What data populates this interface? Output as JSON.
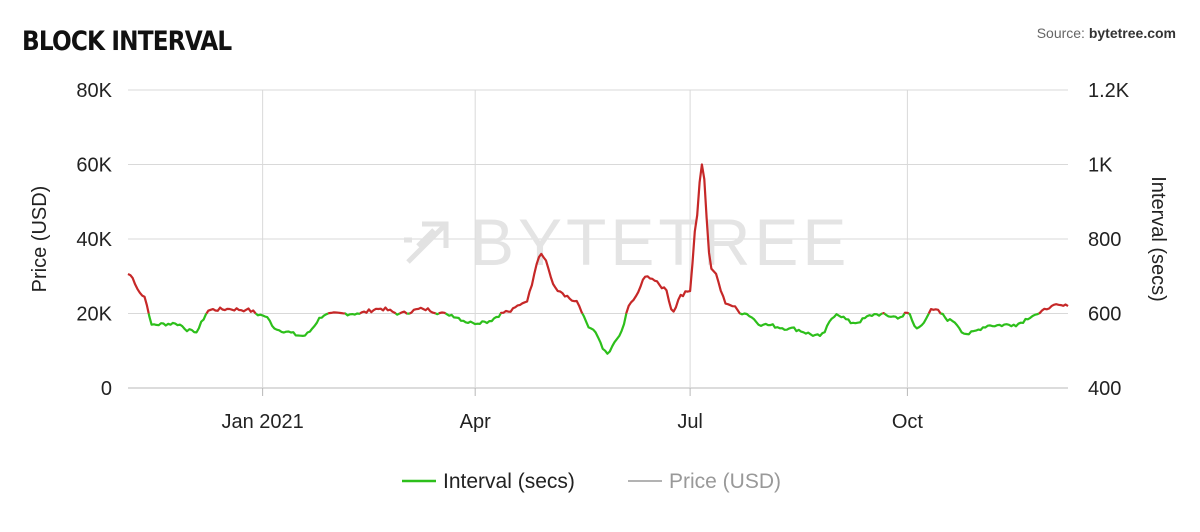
{
  "header": {
    "title": "BLOCK INTERVAL",
    "source_prefix": "Source: ",
    "source_name": "bytetree.com"
  },
  "watermark": "BYTETREE",
  "colors": {
    "interval_green": "#2dbf1b",
    "interval_red": "#c62828",
    "price_gray": "#9a9a9a",
    "grid": "#d9d9d9"
  },
  "chart_data": {
    "type": "line",
    "title": "BLOCK INTERVAL",
    "x_ticks": [
      {
        "label": "Jan 2021",
        "date": "2021-01-01"
      },
      {
        "label": "Apr",
        "date": "2021-04-01"
      },
      {
        "label": "Jul",
        "date": "2021-07-01"
      },
      {
        "label": "Oct",
        "date": "2021-10-01"
      }
    ],
    "xlim": [
      "2020-11-05",
      "2021-12-08"
    ],
    "y_left": {
      "label": "Price (USD)",
      "ticks": [
        "0",
        "20K",
        "40K",
        "60K",
        "80K"
      ],
      "range": [
        0,
        80000
      ]
    },
    "y_right": {
      "label": "Interval (secs)",
      "ticks": [
        "400",
        "600",
        "800",
        "1K",
        "1.2K"
      ],
      "range": [
        400,
        1200
      ]
    },
    "grid": true,
    "legend_position": "bottom",
    "series": [
      {
        "name": "Interval (secs)",
        "axis": "right",
        "color_rule": "red above 600, green at or below 600",
        "x": [
          "2020-11-05",
          "2020-11-12",
          "2020-11-15",
          "2020-11-25",
          "2020-12-03",
          "2020-12-10",
          "2020-12-18",
          "2020-12-25",
          "2021-01-01",
          "2021-01-08",
          "2021-01-18",
          "2021-01-28",
          "2021-02-10",
          "2021-02-20",
          "2021-02-28",
          "2021-03-10",
          "2021-03-20",
          "2021-03-31",
          "2021-04-05",
          "2021-04-15",
          "2021-04-22",
          "2021-04-29",
          "2021-05-06",
          "2021-05-13",
          "2021-05-20",
          "2021-05-27",
          "2021-06-01",
          "2021-06-06",
          "2021-06-13",
          "2021-06-20",
          "2021-06-24",
          "2021-06-27",
          "2021-07-01",
          "2021-07-03",
          "2021-07-06",
          "2021-07-10",
          "2021-07-17",
          "2021-07-24",
          "2021-08-01",
          "2021-08-12",
          "2021-08-25",
          "2021-09-01",
          "2021-09-08",
          "2021-09-18",
          "2021-09-28",
          "2021-10-01",
          "2021-10-05",
          "2021-10-12",
          "2021-10-20",
          "2021-10-26",
          "2021-11-05",
          "2021-11-15",
          "2021-11-25",
          "2021-12-01",
          "2021-12-08"
        ],
        "values": [
          706,
          645,
          570,
          573,
          550,
          610,
          612,
          610,
          595,
          555,
          540,
          598,
          600,
          613,
          600,
          612,
          598,
          575,
          578,
          605,
          630,
          760,
          660,
          633,
          560,
          492,
          540,
          630,
          700,
          670,
          605,
          650,
          660,
          820,
          1000,
          720,
          625,
          600,
          570,
          560,
          540,
          598,
          575,
          598,
          590,
          602,
          560,
          610,
          580,
          545,
          568,
          570,
          598,
          620,
          620
        ]
      },
      {
        "name": "Price (USD)",
        "axis": "left",
        "values": []
      }
    ]
  },
  "legend": [
    {
      "label": "Interval (secs)"
    },
    {
      "label": "Price (USD)"
    }
  ]
}
